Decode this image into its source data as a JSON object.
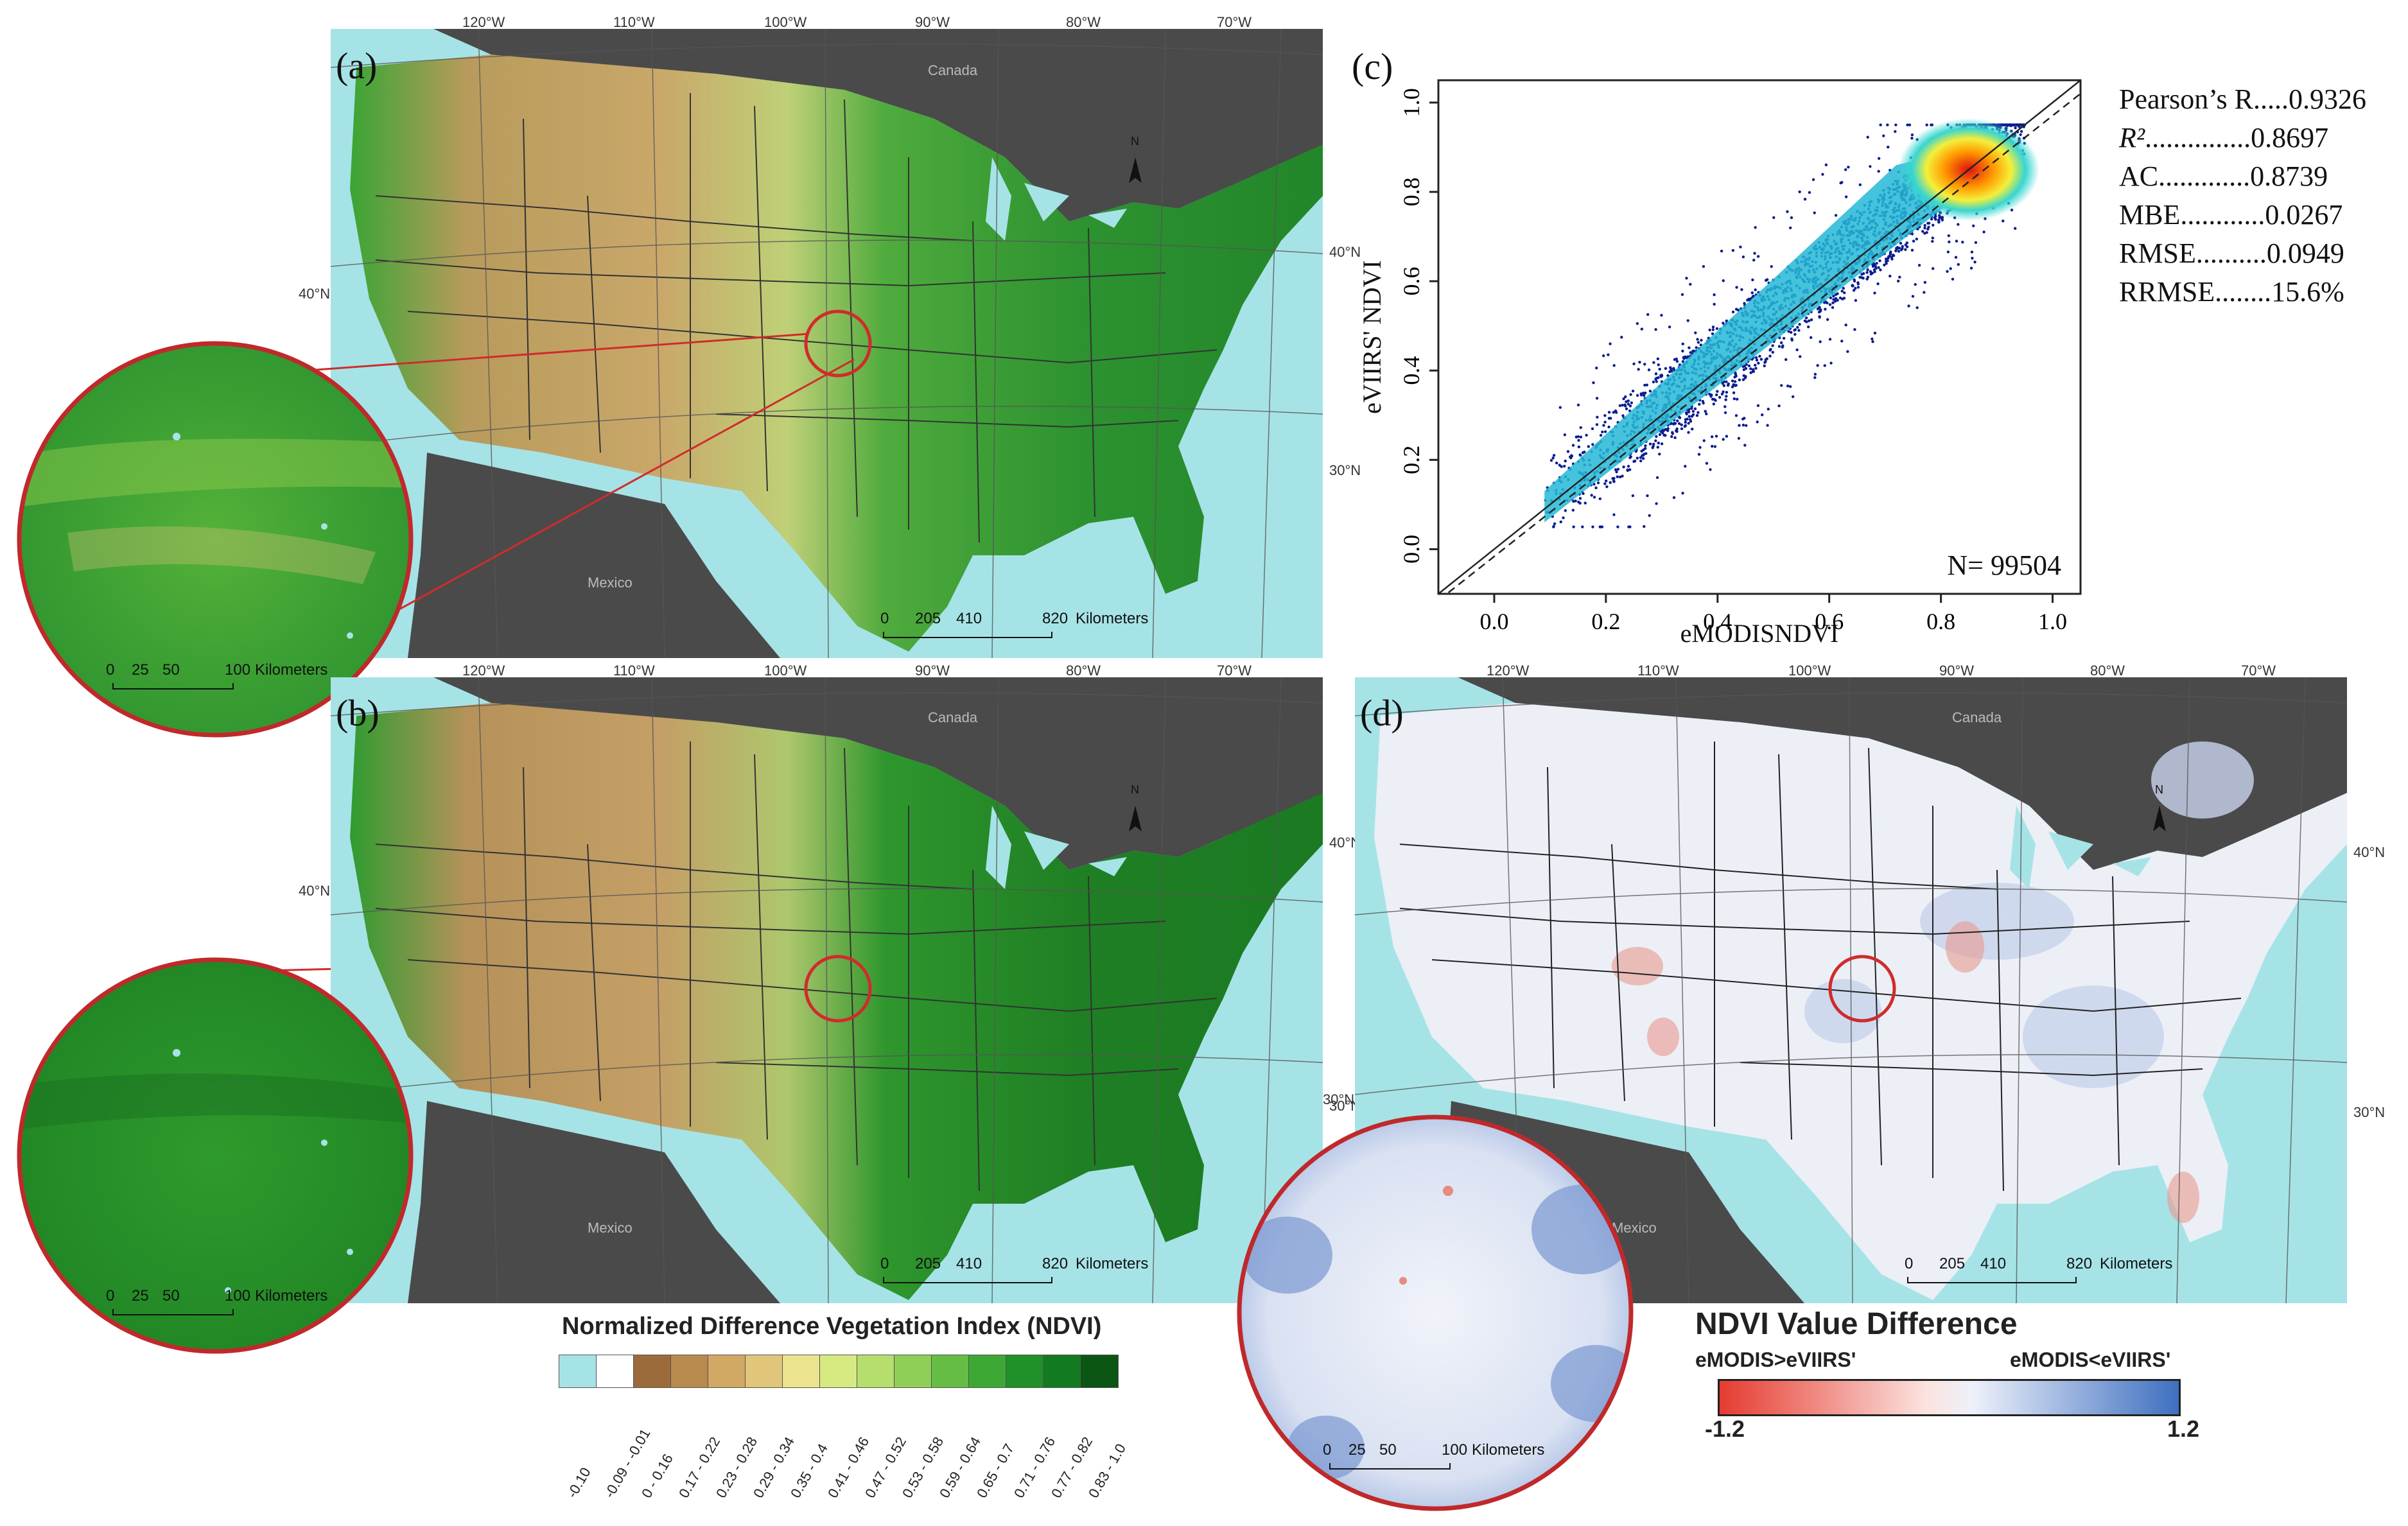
{
  "panels": {
    "a": {
      "tag": "(a)"
    },
    "b": {
      "tag": "(b)"
    },
    "c": {
      "tag": "(c)"
    },
    "d": {
      "tag": "(d)"
    }
  },
  "graticule": {
    "lon": [
      "120°W",
      "110°W",
      "100°W",
      "90°W",
      "80°W",
      "70°W"
    ],
    "lat": [
      "40°N",
      "30°N"
    ]
  },
  "countries": {
    "north": "Canada",
    "south": "Mexico"
  },
  "north_arrow": "N",
  "scalebar_main": {
    "ticks": [
      "0",
      "205",
      "410",
      "820"
    ],
    "unit": "Kilometers"
  },
  "scalebar_zoom": {
    "ticks": [
      "0",
      "25",
      "50",
      "100"
    ],
    "unit": "Kilometers"
  },
  "chart_data": {
    "type": "scatter",
    "title": "",
    "xlabel": "eMODISNDVI",
    "ylabel": "eVIIRS' NDVI",
    "xlim": [
      -0.1,
      1.05
    ],
    "ylim": [
      -0.1,
      1.05
    ],
    "xticks": [
      "0.0",
      "0.2",
      "0.4",
      "0.6",
      "0.8",
      "1.0"
    ],
    "yticks": [
      "0.0",
      "0.2",
      "0.4",
      "0.6",
      "0.8",
      "1.0"
    ],
    "n_label": "N= 99504",
    "density_peak": [
      0.85,
      0.85
    ],
    "lines": [
      "1:1 line (solid)",
      "regression (dashed)"
    ]
  },
  "stats": [
    {
      "label": "Pearson’s R",
      "dots": ".....",
      "value": "0.9326"
    },
    {
      "label": "R²",
      "dots": "...............",
      "value": "0.8697"
    },
    {
      "label": "AC",
      "dots": ".............",
      "value": "0.8739"
    },
    {
      "label": "MBE",
      "dots": "............",
      "value": "0.0267"
    },
    {
      "label": "RMSE",
      "dots": "..........",
      "value": "0.0949"
    },
    {
      "label": "RRMSE",
      "dots": "........",
      "value": "15.6%"
    }
  ],
  "ndvi_legend": {
    "title": "Normalized Difference Vegetation Index (NDVI)",
    "classes": [
      {
        "label": "-0.10",
        "color": "#a6e3e6"
      },
      {
        "label": "-0.09 - -0.01",
        "color": "#ffffff"
      },
      {
        "label": "0 - 0.16",
        "color": "#9c6b3b"
      },
      {
        "label": "0.17 - 0.22",
        "color": "#b98a4d"
      },
      {
        "label": "0.23 - 0.28",
        "color": "#d2a964"
      },
      {
        "label": "0.29 - 0.34",
        "color": "#e0c57a"
      },
      {
        "label": "0.35 - 0.4",
        "color": "#ece38f"
      },
      {
        "label": "0.41 - 0.46",
        "color": "#d7ea82"
      },
      {
        "label": "0.47 - 0.52",
        "color": "#b6de6d"
      },
      {
        "label": "0.53 - 0.58",
        "color": "#8fcf57"
      },
      {
        "label": "0.59 - 0.64",
        "color": "#66bd45"
      },
      {
        "label": "0.65 - 0.7",
        "color": "#3ea835"
      },
      {
        "label": "0.71 - 0.76",
        "color": "#1f9128"
      },
      {
        "label": "0.77 - 0.82",
        "color": "#127a20"
      },
      {
        "label": "0.83 - 1.0",
        "color": "#0b5515"
      }
    ]
  },
  "diff_legend": {
    "title": "NDVI Value Difference",
    "left_label": "eMODIS>eVIIRS'",
    "right_label": "eMODIS<eVIIRS'",
    "min": "-1.2",
    "max": "1.2",
    "colors": [
      "#e63b30",
      "#ffffff",
      "#3e6fc0"
    ]
  }
}
